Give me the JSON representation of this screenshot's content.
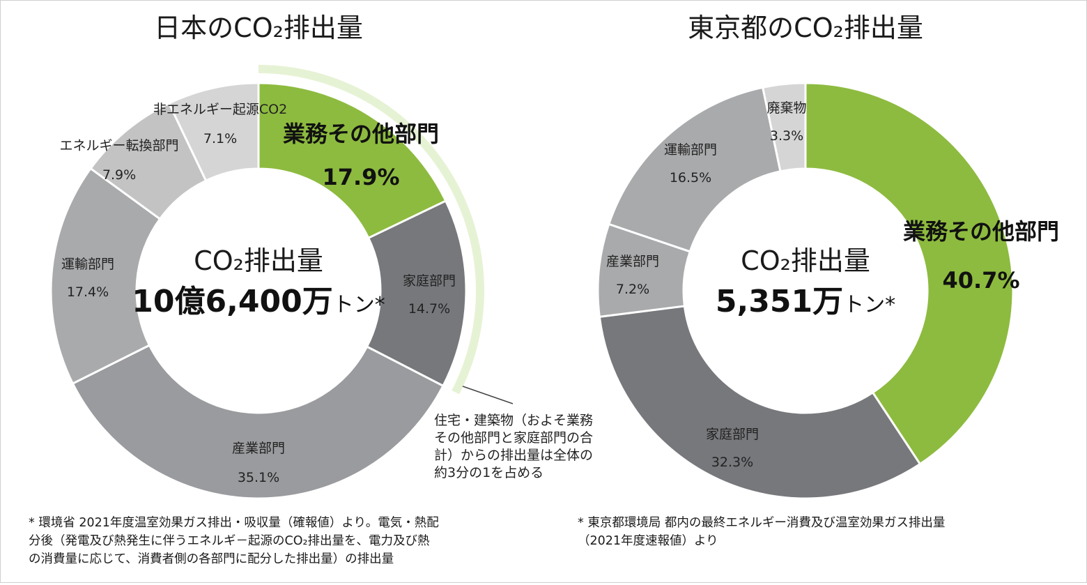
{
  "chart_data": [
    {
      "type": "pie",
      "title": "日本のCO₂排出量",
      "center": {
        "label": "CO₂排出量",
        "value": "10億6,400万",
        "unit": "トン*"
      },
      "slices": [
        {
          "label": "業務その他部門",
          "value": 17.9,
          "display": "17.9%",
          "color": "#8dbb3f"
        },
        {
          "label": "家庭部門",
          "value": 14.7,
          "display": "14.7%",
          "color": "#77787c"
        },
        {
          "label": "産業部門",
          "value": 35.1,
          "display": "35.1%",
          "color": "#9a9b9e"
        },
        {
          "label": "運輸部門",
          "value": 17.4,
          "display": "17.4%",
          "color": "#a9aaac"
        },
        {
          "label": "エネルギー転換部門",
          "value": 7.9,
          "display": "7.9%",
          "color": "#c3c3c4"
        },
        {
          "label": "非エネルギー起源CO2",
          "value": 7.1,
          "display": "7.1%",
          "color": "#d5d5d5"
        }
      ],
      "annotation": [
        "住宅・建築物（およそ業務",
        "その他部門と家庭部門の合",
        "計）からの排出量は全体の",
        "約3分の1を占める"
      ],
      "footnote": [
        "* 環境省 2021年度温室効果ガス排出・吸収量（確報値）より。電気・熱配",
        "分後（発電及び熱発生に伴うエネルギ－起源のCO₂排出量を、電力及び熱",
        "の消費量に応じて、消費者側の各部門に配分した排出量）の排出量"
      ]
    },
    {
      "type": "pie",
      "title": "東京都のCO₂排出量",
      "center": {
        "label": "CO₂排出量",
        "value": "5,351万",
        "unit": "トン*"
      },
      "slices": [
        {
          "label": "業務その他部門",
          "value": 40.7,
          "display": "40.7%",
          "color": "#8dbb3f"
        },
        {
          "label": "家庭部門",
          "value": 32.3,
          "display": "32.3%",
          "color": "#77787c"
        },
        {
          "label": "産業部門",
          "value": 7.2,
          "display": "7.2%",
          "color": "#a9aaac"
        },
        {
          "label": "運輸部門",
          "value": 16.5,
          "display": "16.5%",
          "color": "#a9aaac"
        },
        {
          "label": "廃棄物",
          "value": 3.3,
          "display": "3.3%",
          "color": "#d5d5d5"
        }
      ],
      "footnote": [
        "* 東京都環境局 都内の最終エネルギー消費及び温室効果ガス排出量",
        "（2021年度速報値）より"
      ]
    }
  ]
}
